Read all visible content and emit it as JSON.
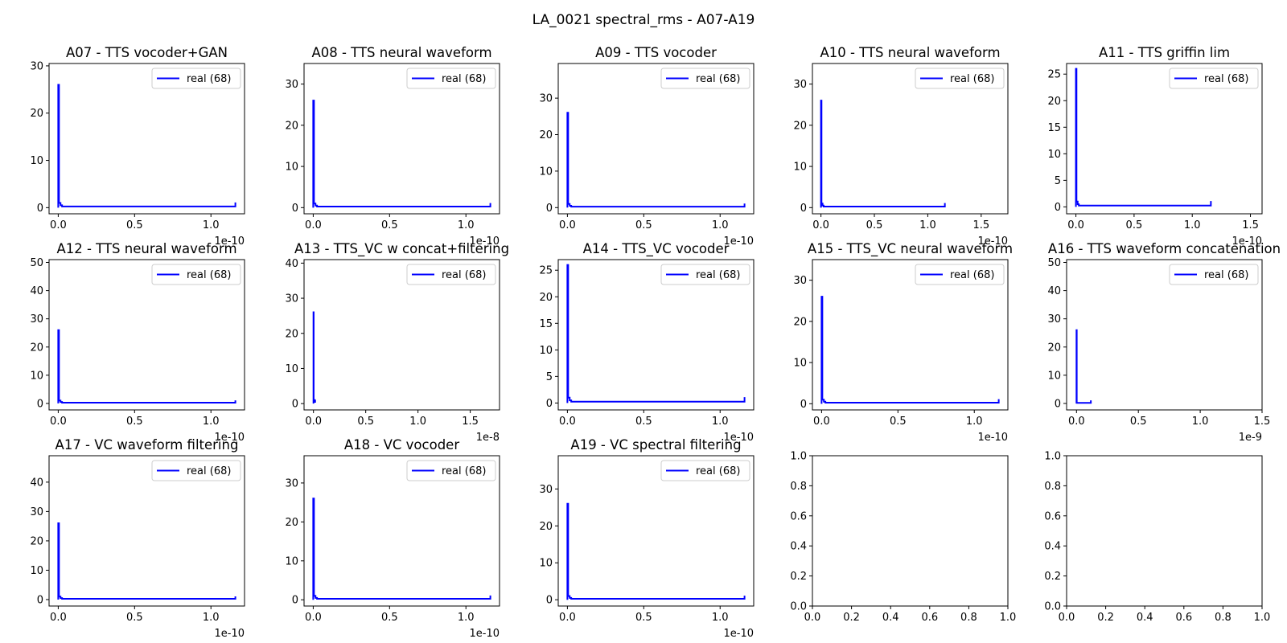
{
  "suptitle": "LA_0021 spectral_rms - A07-A19",
  "colors": {
    "series": "#0000ff",
    "axes": "#000000",
    "legend_border": "#cccccc"
  },
  "chart_data": [
    {
      "type": "line",
      "title": "A07 - TTS vocoder+GAN",
      "xlim": [
        -0.06,
        1.22
      ],
      "ylim": [
        -1.3,
        30.5
      ],
      "xticks": [
        0,
        0.5,
        1.0
      ],
      "xtick_labels": [
        "0.0",
        "0.5",
        "1.0"
      ],
      "yticks": [
        0,
        10,
        20,
        30
      ],
      "ytick_labels": [
        "0",
        "10",
        "20",
        "30"
      ],
      "x_offset_label": "1e-10",
      "legend": "upper right",
      "series": [
        {
          "name": "real (68)",
          "x": [
            0,
            0,
            0.005,
            0.005,
            0.015,
            0.015,
            0.025,
            0.025,
            1.16,
            1.16
          ],
          "y": [
            0,
            26,
            26,
            1,
            1,
            0.5,
            0.5,
            0.25,
            0.25,
            1.1
          ]
        }
      ]
    },
    {
      "type": "line",
      "title": "A08 - TTS neural waveform",
      "xlim": [
        -0.06,
        1.22
      ],
      "ylim": [
        -1.5,
        35
      ],
      "xticks": [
        0,
        0.5,
        1.0
      ],
      "xtick_labels": [
        "0.0",
        "0.5",
        "1.0"
      ],
      "yticks": [
        0,
        10,
        20,
        30
      ],
      "ytick_labels": [
        "0",
        "10",
        "20",
        "30"
      ],
      "x_offset_label": "1e-10",
      "legend": "upper right",
      "series": [
        {
          "name": "real (68)",
          "x": [
            0,
            0,
            0.005,
            0.005,
            0.015,
            0.015,
            0.025,
            0.025,
            1.16,
            1.16
          ],
          "y": [
            0,
            26,
            26,
            1,
            1,
            0.5,
            0.5,
            0.25,
            0.25,
            1.1
          ]
        }
      ]
    },
    {
      "type": "line",
      "title": "A09 - TTS vocoder",
      "xlim": [
        -0.06,
        1.22
      ],
      "ylim": [
        -1.7,
        39.5
      ],
      "xticks": [
        0,
        0.5,
        1.0
      ],
      "xtick_labels": [
        "0.0",
        "0.5",
        "1.0"
      ],
      "yticks": [
        0,
        10,
        20,
        30
      ],
      "ytick_labels": [
        "0",
        "10",
        "20",
        "30"
      ],
      "x_offset_label": "1e-10",
      "legend": "upper right",
      "series": [
        {
          "name": "real (68)",
          "x": [
            0,
            0,
            0.005,
            0.005,
            0.015,
            0.015,
            0.025,
            0.025,
            1.16,
            1.16
          ],
          "y": [
            0,
            26,
            26,
            1,
            1,
            0.5,
            0.5,
            0.25,
            0.25,
            1.1
          ]
        }
      ]
    },
    {
      "type": "line",
      "title": "A10 - TTS neural waveform",
      "xlim": [
        -0.08,
        1.75
      ],
      "ylim": [
        -1.5,
        35
      ],
      "xticks": [
        0,
        0.5,
        1.0,
        1.5
      ],
      "xtick_labels": [
        "0.0",
        "0.5",
        "1.0",
        "1.5"
      ],
      "yticks": [
        0,
        10,
        20,
        30
      ],
      "ytick_labels": [
        "0",
        "10",
        "20",
        "30"
      ],
      "x_offset_label": "1e-10",
      "legend": "upper right",
      "series": [
        {
          "name": "real (68)",
          "x": [
            0,
            0,
            0.005,
            0.005,
            0.015,
            0.015,
            0.025,
            0.025,
            1.16,
            1.16
          ],
          "y": [
            0,
            26,
            26,
            1,
            1,
            0.5,
            0.5,
            0.25,
            0.25,
            1.1
          ]
        }
      ]
    },
    {
      "type": "line",
      "title": "A11 - TTS griffin lim",
      "xlim": [
        -0.08,
        1.6
      ],
      "ylim": [
        -1.3,
        27
      ],
      "xticks": [
        0,
        0.5,
        1.0,
        1.5
      ],
      "xtick_labels": [
        "0.0",
        "0.5",
        "1.0",
        "1.5"
      ],
      "yticks": [
        0,
        5,
        10,
        15,
        20,
        25
      ],
      "ytick_labels": [
        "0",
        "5",
        "10",
        "15",
        "20",
        "25"
      ],
      "x_offset_label": "1e-10",
      "legend": "upper right",
      "series": [
        {
          "name": "real (68)",
          "x": [
            0,
            0,
            0.005,
            0.005,
            0.015,
            0.015,
            0.025,
            0.025,
            1.16,
            1.16
          ],
          "y": [
            0,
            26,
            26,
            1,
            1,
            0.5,
            0.5,
            0.25,
            0.25,
            1.1
          ]
        }
      ]
    },
    {
      "type": "line",
      "title": "A12 - TTS neural waveform",
      "xlim": [
        -0.06,
        1.22
      ],
      "ylim": [
        -2.3,
        51
      ],
      "xticks": [
        0,
        0.5,
        1.0
      ],
      "xtick_labels": [
        "0.0",
        "0.5",
        "1.0"
      ],
      "yticks": [
        0,
        10,
        20,
        30,
        40,
        50
      ],
      "ytick_labels": [
        "0",
        "10",
        "20",
        "30",
        "40",
        "50"
      ],
      "x_offset_label": "1e-10",
      "legend": "upper right",
      "series": [
        {
          "name": "real (68)",
          "x": [
            0,
            0,
            0.005,
            0.005,
            0.015,
            0.015,
            0.025,
            0.025,
            1.16,
            1.16
          ],
          "y": [
            0,
            26,
            26,
            1,
            1,
            0.5,
            0.5,
            0.25,
            0.25,
            1.1
          ]
        }
      ]
    },
    {
      "type": "line",
      "title": "A13 - TTS_VC w concat+filtering",
      "xlim": [
        -0.09,
        1.78
      ],
      "ylim": [
        -1.8,
        41
      ],
      "xticks": [
        0,
        0.5,
        1.0,
        1.5
      ],
      "xtick_labels": [
        "0.0",
        "0.5",
        "1.0",
        "1.5"
      ],
      "yticks": [
        0,
        10,
        20,
        30,
        40
      ],
      "ytick_labels": [
        "0",
        "10",
        "20",
        "30",
        "40"
      ],
      "x_offset_label": "1e-8",
      "legend": "upper right",
      "series": [
        {
          "name": "real (68)",
          "x": [
            0,
            0,
            0.002,
            0.002,
            0.012,
            0.012,
            0.016,
            0.016
          ],
          "y": [
            0,
            26,
            26,
            1,
            1,
            0.5,
            0.5,
            1.1
          ]
        }
      ]
    },
    {
      "type": "line",
      "title": "A14 - TTS_VC vocoder",
      "xlim": [
        -0.06,
        1.22
      ],
      "ylim": [
        -1.3,
        27
      ],
      "xticks": [
        0,
        0.5,
        1.0
      ],
      "xtick_labels": [
        "0.0",
        "0.5",
        "1.0"
      ],
      "yticks": [
        0,
        5,
        10,
        15,
        20,
        25
      ],
      "ytick_labels": [
        "0",
        "5",
        "10",
        "15",
        "20",
        "25"
      ],
      "x_offset_label": "1e-10",
      "legend": "upper right",
      "series": [
        {
          "name": "real (68)",
          "x": [
            0,
            0,
            0.005,
            0.005,
            0.015,
            0.015,
            0.025,
            0.025,
            1.16,
            1.16
          ],
          "y": [
            0,
            26,
            26,
            1,
            1,
            0.5,
            0.5,
            0.25,
            0.25,
            1.1
          ]
        }
      ]
    },
    {
      "type": "line",
      "title": "A15 - TTS_VC neural waveform",
      "xlim": [
        -0.06,
        1.22
      ],
      "ylim": [
        -1.5,
        35
      ],
      "xticks": [
        0,
        0.5,
        1.0
      ],
      "xtick_labels": [
        "0.0",
        "0.5",
        "1.0"
      ],
      "yticks": [
        0,
        10,
        20,
        30
      ],
      "ytick_labels": [
        "0",
        "10",
        "20",
        "30"
      ],
      "x_offset_label": "1e-10",
      "legend": "upper right",
      "series": [
        {
          "name": "real (68)",
          "x": [
            0,
            0,
            0.005,
            0.005,
            0.015,
            0.015,
            0.025,
            0.025,
            1.16,
            1.16
          ],
          "y": [
            0,
            26,
            26,
            1,
            1,
            0.5,
            0.5,
            0.25,
            0.25,
            1.1
          ]
        }
      ]
    },
    {
      "type": "line",
      "title": "A16 - TTS waveform concatenation",
      "xlim": [
        -0.08,
        1.5
      ],
      "ylim": [
        -2.3,
        51
      ],
      "xticks": [
        0,
        0.5,
        1.0,
        1.5
      ],
      "xtick_labels": [
        "0.0",
        "0.5",
        "1.0",
        "1.5"
      ],
      "yticks": [
        0,
        10,
        20,
        30,
        40,
        50
      ],
      "ytick_labels": [
        "0",
        "10",
        "20",
        "30",
        "40",
        "50"
      ],
      "x_offset_label": "1e-9",
      "legend": "upper right",
      "series": [
        {
          "name": "real (68)",
          "x": [
            0,
            0,
            0.002,
            0.002,
            0.116,
            0.116
          ],
          "y": [
            0,
            26,
            26,
            0.2,
            0.2,
            1.1
          ]
        }
      ]
    },
    {
      "type": "line",
      "title": "A17 - VC waveform filtering",
      "xlim": [
        -0.06,
        1.22
      ],
      "ylim": [
        -2.2,
        49
      ],
      "xticks": [
        0,
        0.5,
        1.0
      ],
      "xtick_labels": [
        "0.0",
        "0.5",
        "1.0"
      ],
      "yticks": [
        0,
        10,
        20,
        30,
        40
      ],
      "ytick_labels": [
        "0",
        "10",
        "20",
        "30",
        "40"
      ],
      "x_offset_label": "1e-10",
      "legend": "upper right",
      "series": [
        {
          "name": "real (68)",
          "x": [
            0,
            0,
            0.005,
            0.005,
            0.015,
            0.015,
            0.025,
            0.025,
            1.16,
            1.16
          ],
          "y": [
            0,
            26,
            26,
            1,
            1,
            0.5,
            0.5,
            0.25,
            0.25,
            1.1
          ]
        }
      ]
    },
    {
      "type": "line",
      "title": "A18 - VC vocoder",
      "xlim": [
        -0.06,
        1.22
      ],
      "ylim": [
        -1.6,
        37
      ],
      "xticks": [
        0,
        0.5,
        1.0
      ],
      "xtick_labels": [
        "0.0",
        "0.5",
        "1.0"
      ],
      "yticks": [
        0,
        10,
        20,
        30
      ],
      "ytick_labels": [
        "0",
        "10",
        "20",
        "30"
      ],
      "x_offset_label": "1e-10",
      "legend": "upper right",
      "series": [
        {
          "name": "real (68)",
          "x": [
            0,
            0,
            0.005,
            0.005,
            0.015,
            0.015,
            0.025,
            0.025,
            1.16,
            1.16
          ],
          "y": [
            0,
            26,
            26,
            1,
            1,
            0.5,
            0.5,
            0.25,
            0.25,
            1.1
          ]
        }
      ]
    },
    {
      "type": "line",
      "title": "A19 - VC spectral filtering",
      "xlim": [
        -0.06,
        1.22
      ],
      "ylim": [
        -1.7,
        39
      ],
      "xticks": [
        0,
        0.5,
        1.0
      ],
      "xtick_labels": [
        "0.0",
        "0.5",
        "1.0"
      ],
      "yticks": [
        0,
        10,
        20,
        30
      ],
      "ytick_labels": [
        "0",
        "10",
        "20",
        "30"
      ],
      "x_offset_label": "1e-10",
      "legend": "upper right",
      "series": [
        {
          "name": "real (68)",
          "x": [
            0,
            0,
            0.005,
            0.005,
            0.015,
            0.015,
            0.025,
            0.025,
            1.16,
            1.16
          ],
          "y": [
            0,
            26,
            26,
            1,
            1,
            0.5,
            0.5,
            0.25,
            0.25,
            1.1
          ]
        }
      ]
    },
    {
      "type": "line",
      "title": "",
      "xlim": [
        0,
        1
      ],
      "ylim": [
        0,
        1
      ],
      "xticks": [
        0,
        0.2,
        0.4,
        0.6,
        0.8,
        1.0
      ],
      "xtick_labels": [
        "0.0",
        "0.2",
        "0.4",
        "0.6",
        "0.8",
        "1.0"
      ],
      "yticks": [
        0,
        0.2,
        0.4,
        0.6,
        0.8,
        1.0
      ],
      "ytick_labels": [
        "0.0",
        "0.2",
        "0.4",
        "0.6",
        "0.8",
        "1.0"
      ],
      "x_offset_label": "",
      "series": []
    },
    {
      "type": "line",
      "title": "",
      "xlim": [
        0,
        1
      ],
      "ylim": [
        0,
        1
      ],
      "xticks": [
        0,
        0.2,
        0.4,
        0.6,
        0.8,
        1.0
      ],
      "xtick_labels": [
        "0.0",
        "0.2",
        "0.4",
        "0.6",
        "0.8",
        "1.0"
      ],
      "yticks": [
        0,
        0.2,
        0.4,
        0.6,
        0.8,
        1.0
      ],
      "ytick_labels": [
        "0.0",
        "0.2",
        "0.4",
        "0.6",
        "0.8",
        "1.0"
      ],
      "x_offset_label": "",
      "series": []
    }
  ]
}
